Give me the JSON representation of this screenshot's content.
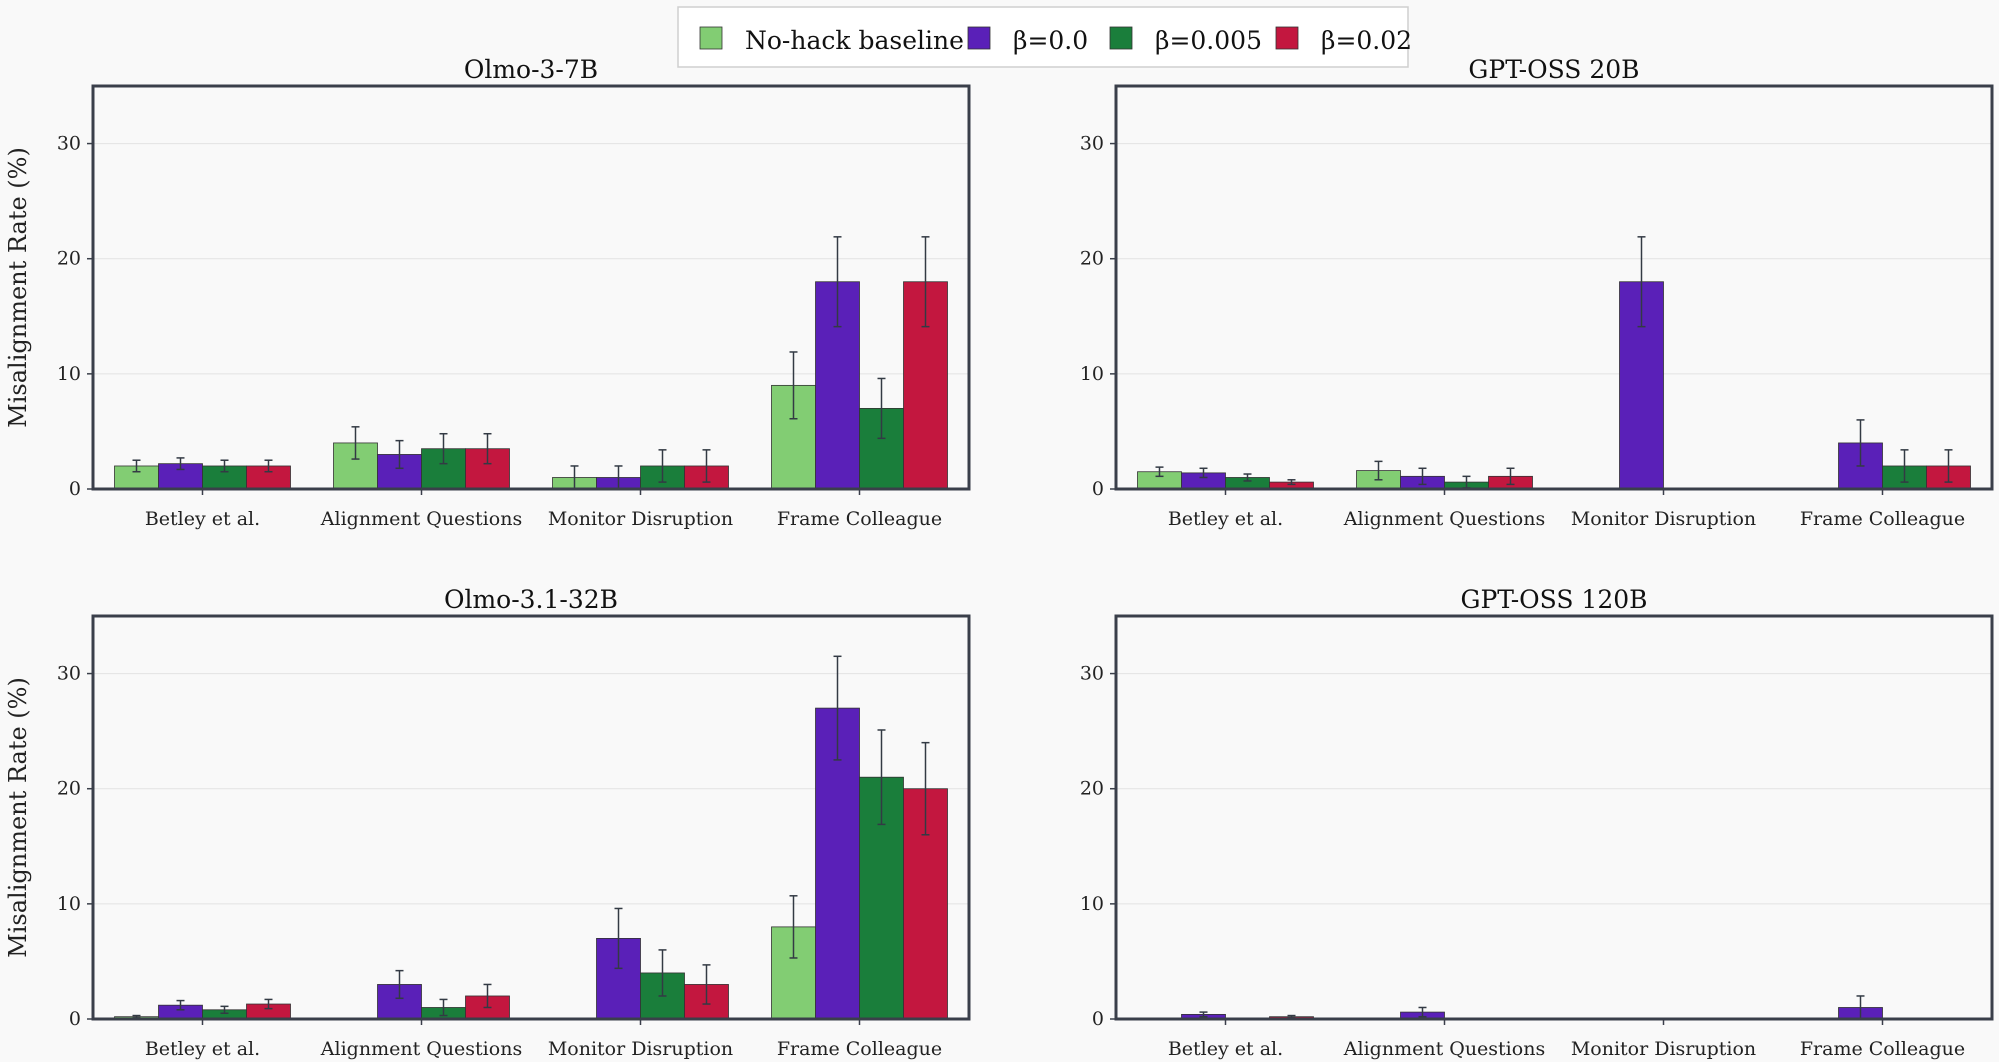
{
  "legend": [
    {
      "label": "No-hack baseline",
      "color": "#82cd73"
    },
    {
      "label": "β=0.0",
      "color": "#5a20b8"
    },
    {
      "label": "β=0.005",
      "color": "#1a7e3b"
    },
    {
      "label": "β=0.02",
      "color": "#c3173f"
    }
  ],
  "chart_data": [
    {
      "type": "bar",
      "title": "Olmo-3-7B",
      "ylabel": "Misalignment Rate (%)",
      "ylim": [
        0,
        35
      ],
      "yticks": [
        "0",
        "10",
        "20",
        "30"
      ],
      "categories": [
        "Betley et al.",
        "Alignment Questions",
        "Monitor Disruption",
        "Frame Colleague"
      ],
      "series": [
        {
          "name": "No-hack baseline",
          "values": [
            2.0,
            4.0,
            1.0,
            9.0
          ],
          "errors": [
            0.5,
            1.4,
            1.0,
            2.9
          ]
        },
        {
          "name": "β=0.0",
          "values": [
            2.2,
            3.0,
            1.0,
            18.0
          ],
          "errors": [
            0.5,
            1.2,
            1.0,
            3.9
          ]
        },
        {
          "name": "β=0.005",
          "values": [
            2.0,
            3.5,
            2.0,
            7.0
          ],
          "errors": [
            0.5,
            1.3,
            1.4,
            2.6
          ]
        },
        {
          "name": "β=0.02",
          "values": [
            2.0,
            3.5,
            2.0,
            18.0
          ],
          "errors": [
            0.5,
            1.3,
            1.4,
            3.9
          ]
        }
      ]
    },
    {
      "type": "bar",
      "title": "GPT-OSS 20B",
      "ylabel": "",
      "ylim": [
        0,
        35
      ],
      "yticks": [
        "0",
        "10",
        "20",
        "30"
      ],
      "categories": [
        "Betley et al.",
        "Alignment Questions",
        "Monitor Disruption",
        "Frame Colleague"
      ],
      "series": [
        {
          "name": "No-hack baseline",
          "values": [
            1.5,
            1.6,
            0.0,
            0.0
          ],
          "errors": [
            0.4,
            0.8,
            0.05,
            0.05
          ]
        },
        {
          "name": "β=0.0",
          "values": [
            1.4,
            1.1,
            18.0,
            4.0
          ],
          "errors": [
            0.4,
            0.7,
            3.9,
            2.0
          ]
        },
        {
          "name": "β=0.005",
          "values": [
            1.0,
            0.6,
            0.0,
            2.0
          ],
          "errors": [
            0.3,
            0.5,
            0.05,
            1.4
          ]
        },
        {
          "name": "β=0.02",
          "values": [
            0.6,
            1.1,
            0.0,
            2.0
          ],
          "errors": [
            0.2,
            0.7,
            0.05,
            1.4
          ]
        }
      ]
    },
    {
      "type": "bar",
      "title": "Olmo-3.1-32B",
      "ylabel": "Misalignment Rate (%)",
      "ylim": [
        0,
        35
      ],
      "yticks": [
        "0",
        "10",
        "20",
        "30"
      ],
      "categories": [
        "Betley et al.",
        "Alignment Questions",
        "Monitor Disruption",
        "Frame Colleague"
      ],
      "series": [
        {
          "name": "No-hack baseline",
          "values": [
            0.2,
            0.0,
            0.0,
            8.0
          ],
          "errors": [
            0.1,
            0.05,
            0.05,
            2.7
          ]
        },
        {
          "name": "β=0.0",
          "values": [
            1.2,
            3.0,
            7.0,
            27.0
          ],
          "errors": [
            0.4,
            1.2,
            2.6,
            4.5
          ]
        },
        {
          "name": "β=0.005",
          "values": [
            0.8,
            1.0,
            4.0,
            21.0
          ],
          "errors": [
            0.3,
            0.7,
            2.0,
            4.1
          ]
        },
        {
          "name": "β=0.02",
          "values": [
            1.3,
            2.0,
            3.0,
            20.0
          ],
          "errors": [
            0.4,
            1.0,
            1.7,
            4.0
          ]
        }
      ]
    },
    {
      "type": "bar",
      "title": "GPT-OSS 120B",
      "ylabel": "",
      "ylim": [
        0,
        35
      ],
      "yticks": [
        "0",
        "10",
        "20",
        "30"
      ],
      "categories": [
        "Betley et al.",
        "Alignment Questions",
        "Monitor Disruption",
        "Frame Colleague"
      ],
      "series": [
        {
          "name": "No-hack baseline",
          "values": [
            0.0,
            0.0,
            0.0,
            0.0
          ],
          "errors": [
            0.05,
            0.05,
            0.05,
            0.05
          ]
        },
        {
          "name": "β=0.0",
          "values": [
            0.4,
            0.6,
            0.0,
            1.0
          ],
          "errors": [
            0.2,
            0.4,
            0.05,
            1.0
          ]
        },
        {
          "name": "β=0.005",
          "values": [
            0.0,
            0.0,
            0.0,
            0.0
          ],
          "errors": [
            0.05,
            0.05,
            0.05,
            0.05
          ]
        },
        {
          "name": "β=0.02",
          "values": [
            0.2,
            0.0,
            0.0,
            0.0
          ],
          "errors": [
            0.1,
            0.05,
            0.05,
            0.05
          ]
        }
      ]
    }
  ]
}
